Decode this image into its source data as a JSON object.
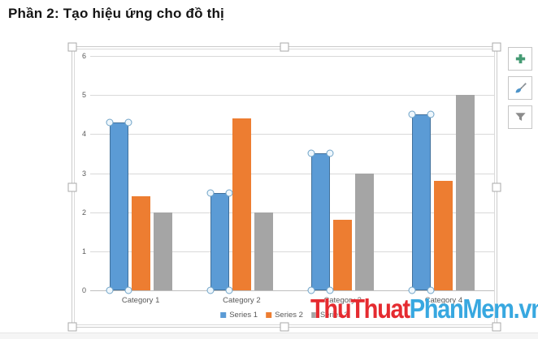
{
  "page": {
    "title": "Phần 2: Tạo hiệu ứng cho đồ thị"
  },
  "chart_data": {
    "type": "bar",
    "title": "",
    "categories": [
      "Category 1",
      "Category 2",
      "Category 3",
      "Category 4"
    ],
    "series": [
      {
        "name": "Series 1",
        "color": "#5B9BD5",
        "values": [
          4.3,
          2.5,
          3.5,
          4.5
        ],
        "selected": true
      },
      {
        "name": "Series 2",
        "color": "#ED7D31",
        "values": [
          2.4,
          4.4,
          1.8,
          2.8
        ],
        "selected": false
      },
      {
        "name": "Series 3",
        "color": "#A5A5A5",
        "values": [
          2.0,
          2.0,
          3.0,
          5.0
        ],
        "selected": false
      }
    ],
    "ylim": [
      0,
      6
    ],
    "yticks": [
      0,
      1,
      2,
      3,
      4,
      5,
      6
    ],
    "grid": true,
    "legend_position": "bottom",
    "colors": {
      "gridline": "#D9D9D9",
      "axis_line": "#BFBFBF",
      "tick_label": "#595959",
      "legend_label": "#595959",
      "selection_circle_border": "#6FA3C8",
      "selection_circle_fill": "#EFF7FC"
    }
  },
  "chart_tools": {
    "buttons": [
      {
        "name": "chart-elements-button",
        "icon": "plus-icon"
      },
      {
        "name": "chart-styles-button",
        "icon": "brush-icon"
      },
      {
        "name": "chart-filters-button",
        "icon": "funnel-icon"
      }
    ]
  },
  "icons": {
    "plus": {
      "color": "#459B74"
    },
    "brush": {
      "handle_color": "#898F95",
      "ferrule_color": "#6A7076",
      "tip_color": "#4E94C9"
    },
    "funnel": {
      "color": "#8C8C8C"
    }
  },
  "watermark": {
    "part1": "ThuThuat",
    "part1_color": "#E52B30",
    "part2": "PhanMem.vn",
    "part2_color": "#38A8E0"
  }
}
